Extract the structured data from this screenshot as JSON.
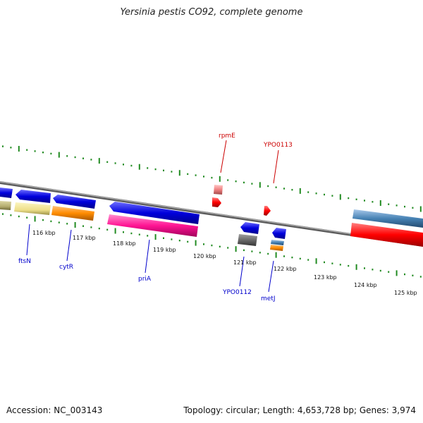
{
  "title": "Yersinia pestis CO92, complete genome",
  "footer": {
    "accession": "Accession: NC_003143",
    "summary": "Topology: circular; Length: 4,653,728 bp; Genes: 3,974"
  },
  "colors": {
    "backbone": "#8c8c8c",
    "tick": "#228b22",
    "forward_label": "#cc0000",
    "reverse_label": "#0000cc"
  },
  "ticks": [
    "116 kbp",
    "117 kbp",
    "118 kbp",
    "119 kbp",
    "120 kbp",
    "121 kbp",
    "122 kbp",
    "123 kbp",
    "124 kbp",
    "125 kbp"
  ],
  "gene_labels": [
    {
      "name": "ftsN",
      "strand": "reverse"
    },
    {
      "name": "cytR",
      "strand": "reverse"
    },
    {
      "name": "priA",
      "strand": "reverse"
    },
    {
      "name": "rpmE",
      "strand": "forward"
    },
    {
      "name": "YPO0113",
      "strand": "forward"
    },
    {
      "name": "YPO0112",
      "strand": "reverse"
    },
    {
      "name": "metJ",
      "strand": "reverse"
    }
  ]
}
